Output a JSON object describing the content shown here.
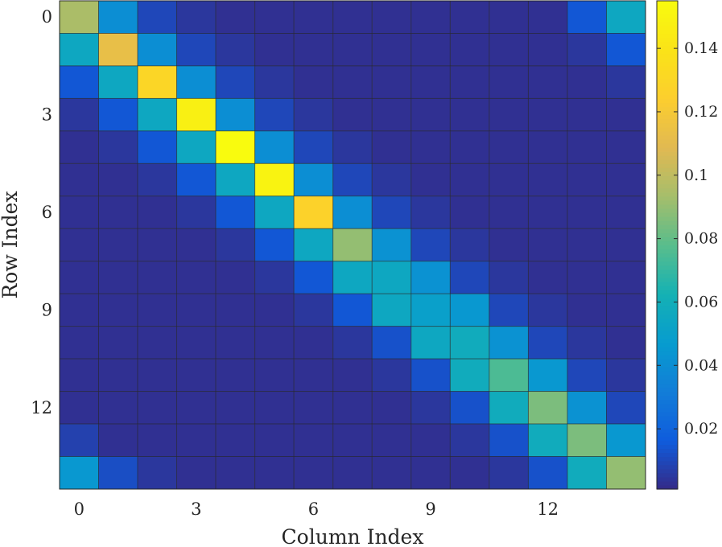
{
  "chart_data": {
    "type": "heatmap",
    "title": "",
    "xlabel": "Column Index",
    "ylabel": "Row Index",
    "x_ticks": [
      "0",
      "3",
      "6",
      "9",
      "12"
    ],
    "y_ticks": [
      "0",
      "3",
      "6",
      "9",
      "12"
    ],
    "x_tick_values": [
      0,
      3,
      6,
      9,
      12
    ],
    "y_tick_values": [
      0,
      3,
      6,
      9,
      12
    ],
    "rows": 15,
    "cols": 15,
    "colormap": "parula",
    "colorbar": {
      "range": [
        0.001,
        0.155
      ],
      "ticks": [
        0.02,
        0.04,
        0.06,
        0.08,
        0.1,
        0.12,
        0.14
      ],
      "tick_labels": [
        "0.02",
        "0.04",
        "0.06",
        "0.08",
        "0.1",
        "0.12",
        "0.14"
      ]
    },
    "values": [
      [
        0.095,
        0.04,
        0.01,
        0.005,
        0.003,
        0.003,
        0.003,
        0.003,
        0.003,
        0.003,
        0.003,
        0.003,
        0.003,
        0.015,
        0.055
      ],
      [
        0.055,
        0.113,
        0.04,
        0.01,
        0.005,
        0.003,
        0.003,
        0.003,
        0.003,
        0.003,
        0.003,
        0.003,
        0.003,
        0.005,
        0.015
      ],
      [
        0.015,
        0.055,
        0.13,
        0.04,
        0.01,
        0.005,
        0.003,
        0.003,
        0.003,
        0.003,
        0.003,
        0.003,
        0.003,
        0.003,
        0.005
      ],
      [
        0.005,
        0.015,
        0.055,
        0.148,
        0.04,
        0.01,
        0.005,
        0.003,
        0.003,
        0.003,
        0.003,
        0.003,
        0.003,
        0.003,
        0.003
      ],
      [
        0.003,
        0.005,
        0.015,
        0.055,
        0.155,
        0.04,
        0.01,
        0.005,
        0.003,
        0.003,
        0.003,
        0.003,
        0.003,
        0.003,
        0.003
      ],
      [
        0.003,
        0.003,
        0.005,
        0.015,
        0.055,
        0.15,
        0.04,
        0.01,
        0.005,
        0.003,
        0.003,
        0.003,
        0.003,
        0.003,
        0.003
      ],
      [
        0.003,
        0.003,
        0.003,
        0.005,
        0.015,
        0.055,
        0.127,
        0.04,
        0.01,
        0.005,
        0.003,
        0.003,
        0.003,
        0.003,
        0.003
      ],
      [
        0.003,
        0.003,
        0.003,
        0.003,
        0.005,
        0.015,
        0.055,
        0.09,
        0.042,
        0.01,
        0.005,
        0.003,
        0.003,
        0.003,
        0.003
      ],
      [
        0.003,
        0.003,
        0.003,
        0.003,
        0.003,
        0.005,
        0.015,
        0.055,
        0.055,
        0.042,
        0.01,
        0.005,
        0.003,
        0.003,
        0.003
      ],
      [
        0.003,
        0.003,
        0.003,
        0.003,
        0.003,
        0.003,
        0.005,
        0.015,
        0.055,
        0.05,
        0.045,
        0.01,
        0.005,
        0.003,
        0.003
      ],
      [
        0.003,
        0.003,
        0.003,
        0.003,
        0.003,
        0.003,
        0.003,
        0.005,
        0.013,
        0.055,
        0.058,
        0.042,
        0.01,
        0.005,
        0.003
      ],
      [
        0.003,
        0.003,
        0.003,
        0.003,
        0.003,
        0.003,
        0.003,
        0.003,
        0.005,
        0.013,
        0.058,
        0.075,
        0.045,
        0.01,
        0.005
      ],
      [
        0.003,
        0.003,
        0.003,
        0.003,
        0.003,
        0.003,
        0.003,
        0.003,
        0.003,
        0.005,
        0.013,
        0.058,
        0.085,
        0.042,
        0.01
      ],
      [
        0.008,
        0.003,
        0.003,
        0.003,
        0.003,
        0.003,
        0.003,
        0.003,
        0.003,
        0.003,
        0.005,
        0.013,
        0.058,
        0.085,
        0.045
      ],
      [
        0.045,
        0.012,
        0.005,
        0.003,
        0.003,
        0.003,
        0.003,
        0.003,
        0.003,
        0.003,
        0.003,
        0.005,
        0.013,
        0.058,
        0.09
      ]
    ]
  }
}
